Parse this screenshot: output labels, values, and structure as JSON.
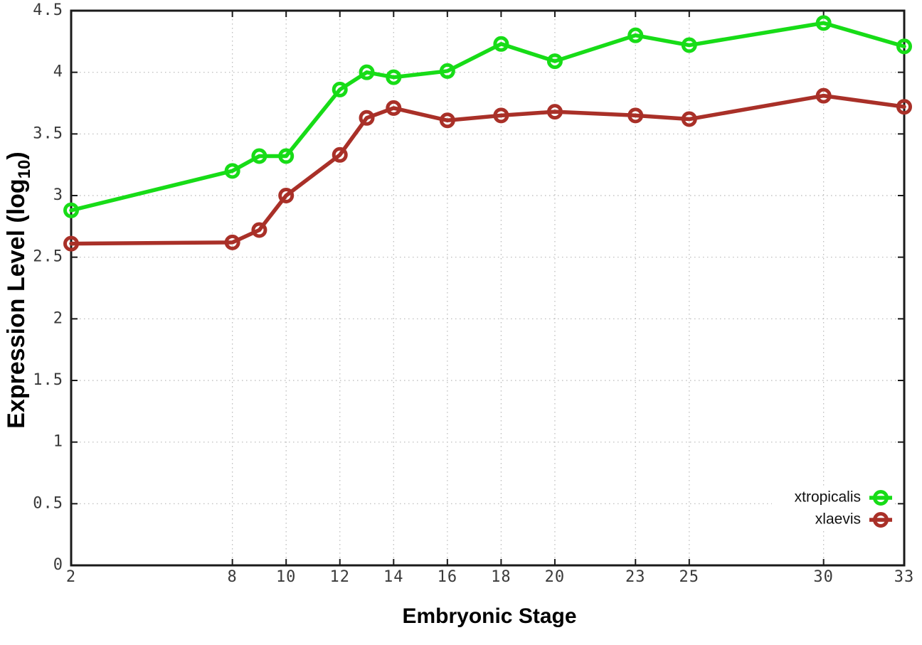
{
  "chart_data": {
    "type": "line",
    "title": "",
    "xlabel": "Embryonic Stage",
    "ylabel_prefix": "Expression Level (log",
    "ylabel_sub": "10",
    "ylabel_suffix": ")",
    "x": [
      2,
      8,
      9,
      10,
      12,
      13,
      14,
      16,
      18,
      20,
      23,
      25,
      30,
      33
    ],
    "series": [
      {
        "name": "xtropicalis",
        "color": "#17dc17",
        "values": [
          2.88,
          3.2,
          3.32,
          3.32,
          3.86,
          4.0,
          3.96,
          4.01,
          4.23,
          4.09,
          4.3,
          4.22,
          4.4,
          4.21
        ]
      },
      {
        "name": "xlaevis",
        "color": "#a93028",
        "values": [
          2.61,
          2.62,
          2.72,
          3.0,
          3.33,
          3.63,
          3.71,
          3.61,
          3.65,
          3.68,
          3.65,
          3.62,
          3.81,
          3.72
        ]
      }
    ],
    "x_tick_values": [
      2,
      8,
      10,
      12,
      14,
      16,
      18,
      20,
      23,
      25,
      30,
      33
    ],
    "x_tick_labels": [
      "2",
      "8",
      "10",
      "12",
      "14",
      "16",
      "18",
      "20",
      "23",
      "25",
      "30",
      "33"
    ],
    "y_tick_values": [
      0,
      0.5,
      1,
      1.5,
      2,
      2.5,
      3,
      3.5,
      4,
      4.5
    ],
    "y_tick_labels": [
      "0",
      "0.5",
      "1",
      "1.5",
      "2",
      "2.5",
      "3",
      "3.5",
      "4",
      "4.5"
    ],
    "xlim": [
      2,
      33
    ],
    "ylim": [
      0,
      4.5
    ],
    "grid": true,
    "legend_position": "bottom-right",
    "marker": "open-circle",
    "colors": {
      "axis": "#1a1a1a",
      "grid": "#b8b8b8",
      "tick_text": "#3a3a3a",
      "title_text": "#000000",
      "background": "#ffffff"
    }
  }
}
